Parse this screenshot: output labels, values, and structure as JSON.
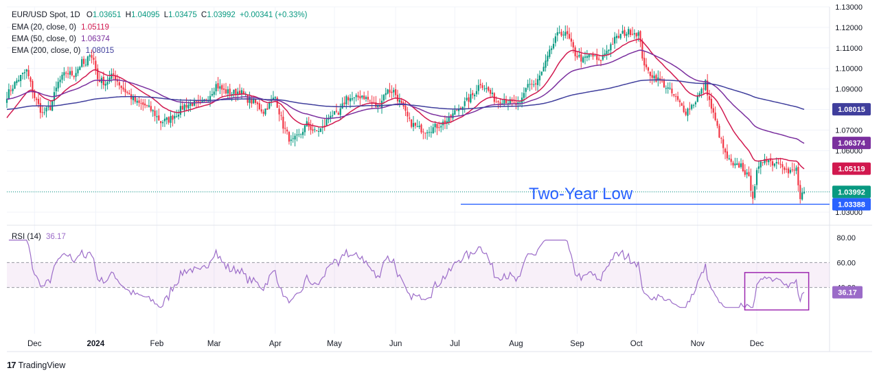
{
  "header": {
    "symbol": "EUR/USD Spot, 1D",
    "open_label": "O",
    "open": "1.03651",
    "high_label": "H",
    "high": "1.04095",
    "low_label": "L",
    "low": "1.03475",
    "close_label": "C",
    "close": "1.03992",
    "change": "+0.00341 (+0.33%)",
    "change_color": "#089981"
  },
  "ema_legend": [
    {
      "label": "EMA (20, close, 0)",
      "value": "1.05119",
      "color": "#d1184e"
    },
    {
      "label": "EMA (50, close, 0)",
      "value": "1.06374",
      "color": "#7a2f9e"
    },
    {
      "label": "EMA (200, close, 0)",
      "value": "1.08015",
      "color": "#3f3e9c"
    }
  ],
  "rsi_legend": {
    "label": "RSI (14)",
    "value": "36.17",
    "color": "#9b6bc8"
  },
  "annotation": {
    "text": "Two-Year Low",
    "color": "#2962ff",
    "level": 1.0339
  },
  "branding": {
    "name": "TradingView",
    "mark_icon": "tradingview-logo-icon"
  },
  "colors": {
    "up": "#089981",
    "down": "#f23645",
    "grid": "#f0f3fa",
    "text": "#131722"
  },
  "chart_data": [
    {
      "type": "candlestick",
      "title": "EUR/USD Spot, 1D",
      "ylim": [
        1.025,
        1.13
      ],
      "y_ticks": [
        "1.13000",
        "1.12000",
        "1.11000",
        "1.10000",
        "1.09000",
        "1.08000",
        "1.07000",
        "1.06000",
        "1.05000",
        "1.04000",
        "1.03000"
      ],
      "x_labels": [
        "Dec",
        "2024",
        "Feb",
        "Mar",
        "Apr",
        "May",
        "Jun",
        "Jul",
        "Aug",
        "Sep",
        "Oct",
        "Nov",
        "Dec"
      ],
      "x_label_days": [
        14,
        45,
        76,
        105,
        136,
        166,
        197,
        227,
        258,
        289,
        319,
        350,
        380
      ],
      "x_range_days": [
        0,
        404
      ],
      "price_anchors": [
        [
          0,
          1.087
        ],
        [
          5,
          1.094
        ],
        [
          10,
          1.099
        ],
        [
          14,
          1.086
        ],
        [
          18,
          1.078
        ],
        [
          22,
          1.081
        ],
        [
          26,
          1.093
        ],
        [
          30,
          1.098
        ],
        [
          34,
          1.097
        ],
        [
          38,
          1.103
        ],
        [
          40,
          1.101
        ],
        [
          42,
          1.108
        ],
        [
          44,
          1.104
        ],
        [
          46,
          1.095
        ],
        [
          50,
          1.093
        ],
        [
          54,
          1.097
        ],
        [
          58,
          1.091
        ],
        [
          62,
          1.087
        ],
        [
          66,
          1.083
        ],
        [
          70,
          1.082
        ],
        [
          74,
          1.079
        ],
        [
          78,
          1.074
        ],
        [
          82,
          1.075
        ],
        [
          86,
          1.078
        ],
        [
          90,
          1.082
        ],
        [
          94,
          1.083
        ],
        [
          98,
          1.082
        ],
        [
          102,
          1.086
        ],
        [
          106,
          1.092
        ],
        [
          110,
          1.089
        ],
        [
          114,
          1.088
        ],
        [
          118,
          1.089
        ],
        [
          122,
          1.085
        ],
        [
          126,
          1.083
        ],
        [
          130,
          1.079
        ],
        [
          134,
          1.084
        ],
        [
          136,
          1.086
        ],
        [
          140,
          1.072
        ],
        [
          144,
          1.064
        ],
        [
          148,
          1.067
        ],
        [
          152,
          1.073
        ],
        [
          156,
          1.069
        ],
        [
          160,
          1.071
        ],
        [
          164,
          1.078
        ],
        [
          168,
          1.077
        ],
        [
          172,
          1.086
        ],
        [
          176,
          1.085
        ],
        [
          180,
          1.087
        ],
        [
          184,
          1.084
        ],
        [
          188,
          1.081
        ],
        [
          192,
          1.089
        ],
        [
          196,
          1.089
        ],
        [
          200,
          1.082
        ],
        [
          204,
          1.074
        ],
        [
          208,
          1.071
        ],
        [
          212,
          1.07
        ],
        [
          216,
          1.071
        ],
        [
          220,
          1.073
        ],
        [
          224,
          1.075
        ],
        [
          228,
          1.08
        ],
        [
          232,
          1.083
        ],
        [
          236,
          1.087
        ],
        [
          240,
          1.093
        ],
        [
          244,
          1.089
        ],
        [
          248,
          1.084
        ],
        [
          252,
          1.085
        ],
        [
          256,
          1.083
        ],
        [
          260,
          1.082
        ],
        [
          264,
          1.093
        ],
        [
          268,
          1.092
        ],
        [
          272,
          1.1
        ],
        [
          276,
          1.11
        ],
        [
          280,
          1.118
        ],
        [
          284,
          1.116
        ],
        [
          288,
          1.107
        ],
        [
          292,
          1.104
        ],
        [
          296,
          1.107
        ],
        [
          300,
          1.103
        ],
        [
          304,
          1.109
        ],
        [
          308,
          1.114
        ],
        [
          312,
          1.117
        ],
        [
          316,
          1.118
        ],
        [
          320,
          1.117
        ],
        [
          322,
          1.106
        ],
        [
          324,
          1.099
        ],
        [
          328,
          1.096
        ],
        [
          332,
          1.093
        ],
        [
          336,
          1.089
        ],
        [
          340,
          1.084
        ],
        [
          344,
          1.079
        ],
        [
          348,
          1.083
        ],
        [
          352,
          1.089
        ],
        [
          354,
          1.093
        ],
        [
          356,
          1.084
        ],
        [
          360,
          1.071
        ],
        [
          364,
          1.058
        ],
        [
          368,
          1.052
        ],
        [
          372,
          1.053
        ],
        [
          376,
          1.046
        ],
        [
          378,
          1.038
        ],
        [
          380,
          1.049
        ],
        [
          384,
          1.057
        ],
        [
          388,
          1.054
        ],
        [
          392,
          1.055
        ],
        [
          396,
          1.049
        ],
        [
          400,
          1.051
        ],
        [
          402,
          1.036
        ],
        [
          404,
          1.0399
        ]
      ],
      "ema": [
        {
          "label": "EMA (20, close, 0)",
          "period": 20,
          "color": "#d1184e",
          "last": 1.05119
        },
        {
          "label": "EMA (50, close, 0)",
          "period": 50,
          "color": "#7a2f9e",
          "last": 1.06374
        },
        {
          "label": "EMA (200, close, 0)",
          "period": 200,
          "color": "#3f3e9c",
          "last": 1.08015
        }
      ],
      "last_close": {
        "value": 1.03992,
        "label": "1.03992",
        "color": "#089981"
      },
      "horizontal_line": {
        "value": 1.03388,
        "label": "1.03388",
        "from_day": 230,
        "color": "#2962ff"
      }
    },
    {
      "type": "line",
      "title": "RSI (14)",
      "ylim": [
        20,
        80
      ],
      "y_ticks": [
        "80.00",
        "60.00",
        "40.00"
      ],
      "band": [
        40,
        60
      ],
      "last": {
        "value": 36.17,
        "label": "36.17",
        "color": "#9b6bc8"
      },
      "highlight_box": {
        "from_day": 376,
        "to_day": 407,
        "y_range": [
          22,
          52
        ],
        "color": "#9c27b0"
      }
    }
  ]
}
